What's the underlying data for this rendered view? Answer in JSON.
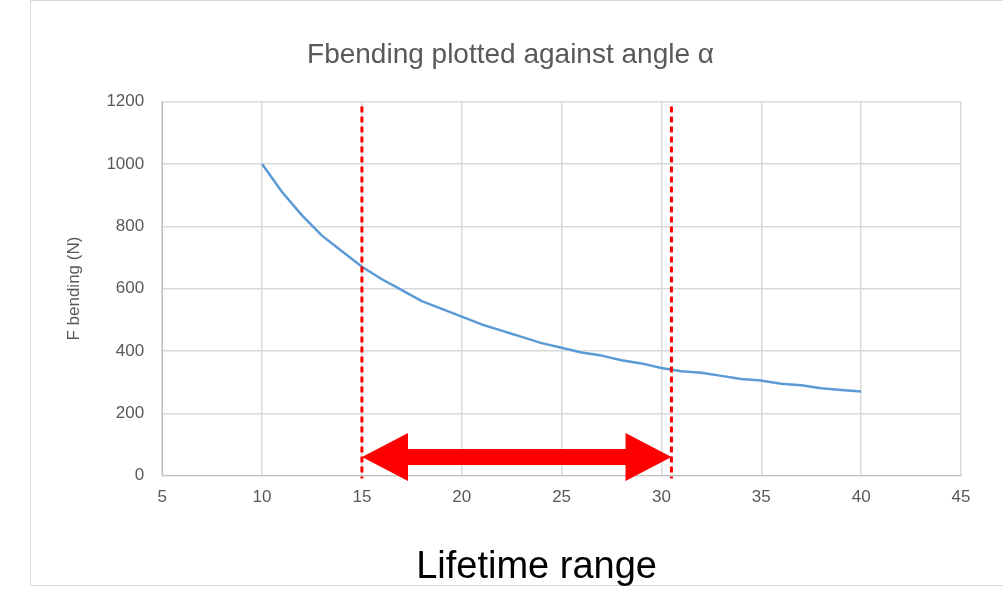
{
  "chart_data": {
    "type": "line",
    "title": "Fbending plotted against angle α",
    "ylabel": "F bending (N)",
    "x": [
      10,
      11,
      12,
      13,
      14,
      15,
      16,
      17,
      18,
      19,
      20,
      21,
      22,
      23,
      24,
      25,
      26,
      27,
      28,
      29,
      30,
      31,
      32,
      33,
      34,
      35,
      36,
      37,
      38,
      39,
      40
    ],
    "series": [
      {
        "color": "#5b9bd5",
        "values": [
          1000,
          910,
          835,
          770,
          720,
          670,
          630,
          595,
          560,
          535,
          510,
          485,
          465,
          445,
          425,
          410,
          395,
          385,
          370,
          360,
          345,
          335,
          330,
          320,
          310,
          305,
          295,
          290,
          280,
          275,
          270
        ]
      }
    ],
    "xlim": [
      5,
      45
    ],
    "xticks": [
      5,
      10,
      15,
      20,
      25,
      30,
      35,
      40,
      45
    ],
    "ylim": [
      0,
      1200
    ],
    "yticks": [
      0,
      200,
      400,
      600,
      800,
      1000,
      1200
    ],
    "grid": true,
    "legend": false,
    "marker": "none",
    "line_style": "solid",
    "ref_lines": [
      {
        "axis": "x",
        "value": 15,
        "color": "#ff0000",
        "line_style": "dashed"
      },
      {
        "axis": "x",
        "value": 30.5,
        "color": "#ff0000",
        "line_style": "dashed"
      }
    ],
    "annotations": [
      "Lifetime range"
    ]
  }
}
